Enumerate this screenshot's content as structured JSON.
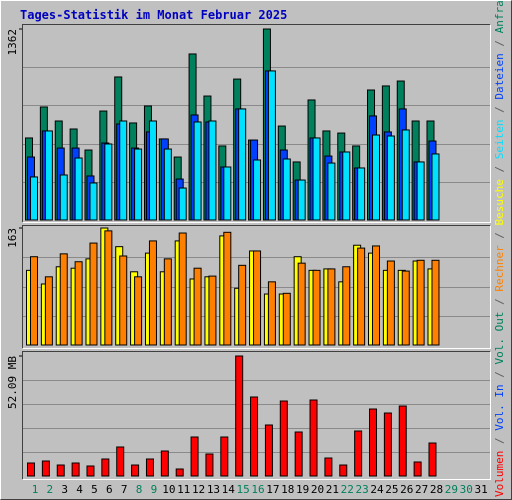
{
  "chart_data": [
    {
      "type": "bar",
      "title": "Tages-Statistik im Monat Februar 2025",
      "ylim": [
        0,
        1362
      ],
      "yticks": [
        1362
      ],
      "series": [
        {
          "name": "Anfragen",
          "color": "#00805c",
          "values": [
            585,
            806,
            706,
            649,
            499,
            777,
            1020,
            692,
            813,
            578,
            449,
            1184,
            884,
            528,
            1005,
            570,
            1362,
            670,
            414,
            856,
            635,
            620,
            528,
            927,
            956,
            991,
            706,
            706,
            null,
            null,
            null
          ]
        },
        {
          "name": "Dateien",
          "color": "#0040ff",
          "values": [
            449,
            635,
            513,
            513,
            314,
            549,
            685,
            513,
            628,
            578,
            292,
            749,
            699,
            378,
            792,
            570,
            1063,
            499,
            285,
            585,
            456,
            485,
            371,
            742,
            628,
            792,
            414,
            563,
            null,
            null,
            null
          ]
        },
        {
          "name": "Seiten",
          "color": "#00e0ff",
          "values": [
            307,
            635,
            321,
            442,
            264,
            542,
            706,
            506,
            706,
            506,
            228,
            699,
            706,
            378,
            792,
            428,
            1063,
            435,
            285,
            585,
            406,
            485,
            371,
            606,
            599,
            642,
            414,
            471,
            null,
            null,
            null
          ]
        }
      ]
    },
    {
      "type": "bar",
      "ylim": [
        0,
        163
      ],
      "yticks": [
        163
      ],
      "series": [
        {
          "name": "Besuche",
          "color": "#ffff00",
          "values": [
            104,
            85,
            109,
            107,
            120,
            163,
            137,
            102,
            128,
            102,
            145,
            92,
            95,
            152,
            79,
            131,
            71,
            71,
            123,
            104,
            106,
            88,
            139,
            128,
            104,
            104,
            117,
            106,
            null,
            null,
            null
          ]
        },
        {
          "name": "Rechner",
          "color": "#ff8000",
          "values": [
            123,
            95,
            127,
            116,
            142,
            159,
            124,
            95,
            145,
            120,
            156,
            107,
            96,
            157,
            111,
            131,
            88,
            72,
            114,
            104,
            106,
            109,
            135,
            138,
            117,
            103,
            118,
            118,
            null,
            null,
            null
          ]
        }
      ]
    },
    {
      "type": "bar",
      "ylim": [
        0,
        52.09
      ],
      "yticks": [
        {
          "value": 52.09,
          "label": "52.09 MB"
        }
      ],
      "categories": [
        "1",
        "2",
        "3",
        "4",
        "5",
        "6",
        "7",
        "8",
        "9",
        "10",
        "11",
        "12",
        "13",
        "14",
        "15",
        "16",
        "17",
        "18",
        "19",
        "20",
        "21",
        "22",
        "23",
        "24",
        "25",
        "26",
        "27",
        "28",
        "29",
        "30",
        "31"
      ],
      "category_colors": [
        "#00805c",
        "#00805c",
        "#000000",
        "#000000",
        "#000000",
        "#000000",
        "#000000",
        "#00805c",
        "#00805c",
        "#000000",
        "#000000",
        "#000000",
        "#000000",
        "#000000",
        "#00805c",
        "#00805c",
        "#000000",
        "#000000",
        "#000000",
        "#000000",
        "#000000",
        "#00805c",
        "#00805c",
        "#000000",
        "#000000",
        "#000000",
        "#000000",
        "#000000",
        "#00805c",
        "#00805c",
        "#000000"
      ],
      "series": [
        {
          "name": "Volumen",
          "color": "#ff0000",
          "values": [
            5.64,
            6.51,
            4.77,
            5.64,
            4.34,
            7.38,
            12.59,
            4.77,
            7.38,
            10.85,
            3.04,
            16.93,
            9.55,
            16.93,
            52.09,
            34.29,
            22.14,
            32.55,
            19.1,
            32.99,
            7.81,
            4.77,
            19.53,
            29.08,
            27.34,
            30.38,
            6.08,
            14.32,
            null,
            null,
            null
          ]
        },
        {
          "name": "Vol. In",
          "color": "#0040ff",
          "values": [
            null,
            null,
            null,
            null,
            null,
            null,
            null,
            null,
            null,
            null,
            null,
            null,
            null,
            null,
            null,
            null,
            null,
            null,
            null,
            null,
            null,
            null,
            null,
            null,
            null,
            null,
            null,
            null,
            null,
            null,
            null
          ]
        },
        {
          "name": "Vol. Out",
          "color": "#00805c",
          "values": [
            null,
            null,
            null,
            null,
            null,
            null,
            null,
            null,
            null,
            null,
            null,
            null,
            null,
            null,
            null,
            null,
            null,
            null,
            null,
            null,
            null,
            null,
            null,
            null,
            null,
            null,
            null,
            null,
            null,
            null,
            null
          ]
        }
      ]
    }
  ]
}
